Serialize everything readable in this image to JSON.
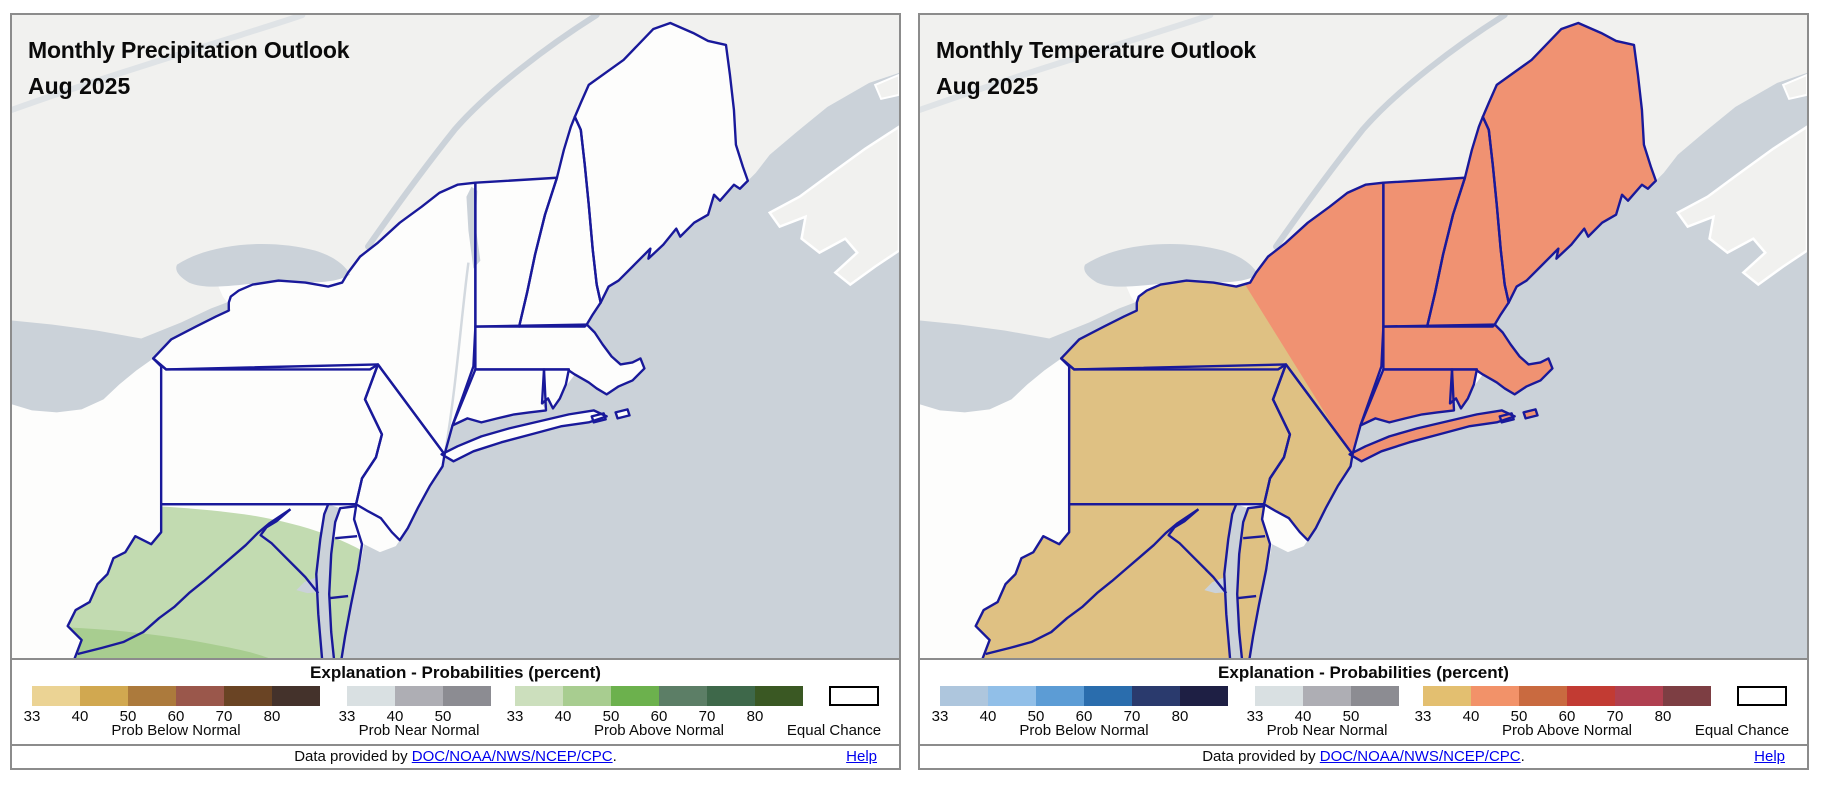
{
  "panels": [
    {
      "title": "Monthly Precipitation Outlook",
      "date": "Aug 2025",
      "legend": {
        "header": "Explanation - Probabilities (percent)",
        "bars": [
          {
            "name": "below",
            "label": "Prob Below Normal",
            "ticks": [
              "33",
              "40",
              "50",
              "60",
              "70",
              "80"
            ],
            "colors": [
              "#EBD394",
              "#D1A850",
              "#AC7A3C",
              "#9A574B",
              "#6A4424",
              "#44322B"
            ]
          },
          {
            "name": "near",
            "label": "Prob Near Normal",
            "ticks": [
              "33",
              "40",
              "50"
            ],
            "colors": [
              "#D9E0E2",
              "#AEAEB4",
              "#8C8C92"
            ]
          },
          {
            "name": "above",
            "label": "Prob Above Normal",
            "ticks": [
              "33",
              "40",
              "50",
              "60",
              "70",
              "80"
            ],
            "colors": [
              "#CCDFBD",
              "#A8CD90",
              "#6CB14D",
              "#5C7E66",
              "#3E684A",
              "#3A5823"
            ]
          }
        ],
        "equal_chance_label": "Equal Chance"
      },
      "regions": [
        {
          "area": "southwest (WV, VA, MD)",
          "category": "above normal 33-40%",
          "color": "#C2DBB1"
        },
        {
          "area": "far southwest corner",
          "category": "above normal 40-50%",
          "color": "#A8CD90"
        }
      ],
      "footer": {
        "prefix": "Data provided by ",
        "link": "DOC/NOAA/NWS/NCEP/CPC",
        "suffix": ".",
        "help": "Help"
      }
    },
    {
      "title": "Monthly Temperature Outlook",
      "date": "Aug 2025",
      "legend": {
        "header": "Explanation - Probabilities (percent)",
        "bars": [
          {
            "name": "below",
            "label": "Prob Below Normal",
            "ticks": [
              "33",
              "40",
              "50",
              "60",
              "70",
              "80"
            ],
            "colors": [
              "#AEC6DD",
              "#91BFE8",
              "#5C9CD5",
              "#2A6DAD",
              "#2A3A6D",
              "#1E1F44"
            ]
          },
          {
            "name": "near",
            "label": "Prob Near Normal",
            "ticks": [
              "33",
              "40",
              "50"
            ],
            "colors": [
              "#D9E0E2",
              "#AEAEB4",
              "#8C8C92"
            ]
          },
          {
            "name": "above",
            "label": "Prob Above Normal",
            "ticks": [
              "33",
              "40",
              "50",
              "60",
              "70",
              "80"
            ],
            "colors": [
              "#E3BF70",
              "#F29269",
              "#C96A40",
              "#C23B33",
              "#B04050",
              "#7D3E43"
            ]
          }
        ],
        "equal_chance_label": "Equal Chance"
      },
      "regions": [
        {
          "area": "west and southwest (western NY, PA, NJ, MD, WV, VA)",
          "category": "above normal 33-40%",
          "color": "#DFC183"
        },
        {
          "area": "northeast (New England, eastern NY)",
          "category": "above normal 40-50%",
          "color": "#F09272"
        }
      ],
      "footer": {
        "prefix": "Data provided by ",
        "link": "DOC/NOAA/NWS/NCEP/CPC",
        "suffix": ".",
        "help": "Help"
      }
    }
  ],
  "map_colors": {
    "us_land": "#FDFDFC",
    "canada_land": "#F1F1EF",
    "water": "#CBD2D9",
    "canada_water": "#DFE3E6",
    "state_border": "#19199A",
    "ns_halo": "#FFFFFF",
    "frame_border": "#8C8C8C",
    "link_color": "#0000EE"
  }
}
